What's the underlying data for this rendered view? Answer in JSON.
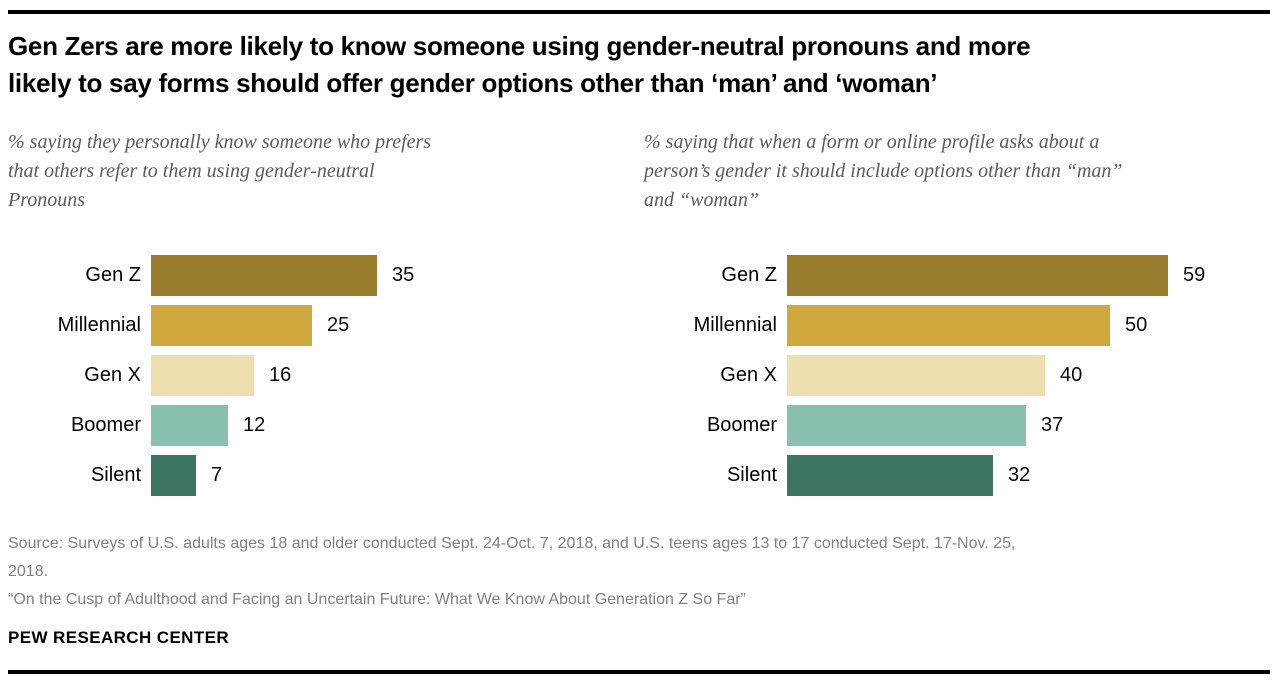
{
  "header": {
    "title_lines": [
      "Gen Zers are more likely to know someone using gender-neutral pronouns and more",
      "likely to say forms should offer gender options other than ‘man’ and ‘woman’"
    ]
  },
  "chart_data": [
    {
      "type": "bar",
      "orientation": "horizontal",
      "title": "% saying they personally know someone who prefers that others refer to them using gender-neutral Pronouns",
      "subtitle_lines": [
        "% saying they personally know someone who prefers",
        "that others refer to them using gender-neutral",
        "Pronouns"
      ],
      "categories": [
        "Gen Z",
        "Millennial",
        "Gen X",
        "Boomer",
        "Silent"
      ],
      "values": [
        35,
        25,
        16,
        12,
        7
      ],
      "colors": [
        "#997C2D",
        "#CFA93E",
        "#EEDFB0",
        "#8AC0AF",
        "#3E7466"
      ],
      "xlim": [
        0,
        65
      ],
      "grid": false,
      "value_labels": "end-of-bar"
    },
    {
      "type": "bar",
      "orientation": "horizontal",
      "title": "% saying that when a form or online profile asks about a person’s gender it should include options other than “man” and “woman”",
      "subtitle_lines": [
        "% saying that when a form or online profile asks about a",
        "person’s gender it should include options other than “man”",
        "and “woman”"
      ],
      "categories": [
        "Gen Z",
        "Millennial",
        "Gen X",
        "Boomer",
        "Silent"
      ],
      "values": [
        59,
        50,
        40,
        37,
        32
      ],
      "colors": [
        "#997C2D",
        "#CFA93E",
        "#EEDFB0",
        "#8AC0AF",
        "#3E7466"
      ],
      "xlim": [
        0,
        65
      ],
      "grid": false,
      "value_labels": "end-of-bar"
    }
  ],
  "footer": {
    "source_lines": [
      "Source: Surveys of U.S. adults ages 18 and older conducted Sept. 24-Oct. 7, 2018, and U.S. teens ages 13 to 17 conducted Sept. 17-Nov. 25,",
      "2018."
    ],
    "quote_line": "“On the Cusp of Adulthood and Facing an Uncertain Future: What We Know About Generation Z So Far”",
    "brand": "PEW RESEARCH CENTER"
  }
}
